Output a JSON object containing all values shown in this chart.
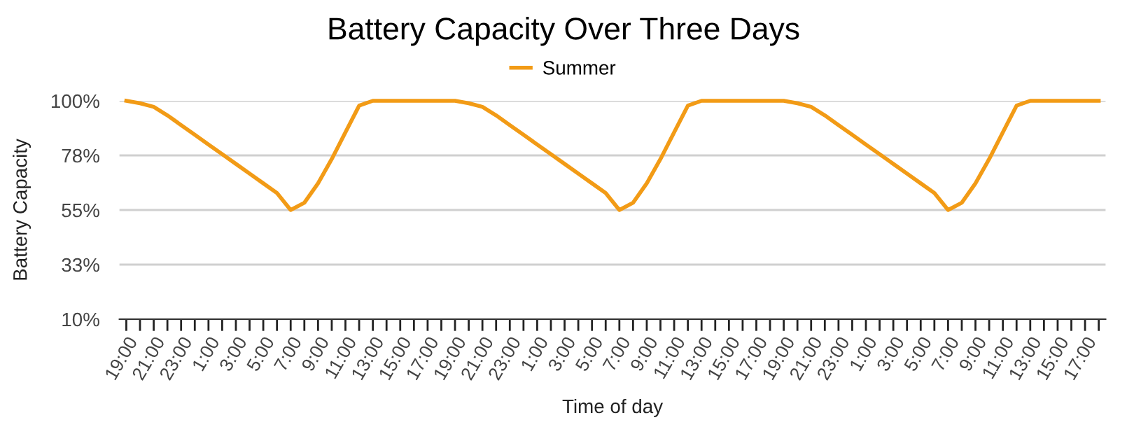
{
  "chart_data": {
    "type": "line",
    "title": "Battery Capacity Over Three Days",
    "xlabel": "Time of day",
    "ylabel": "Battery Capacity",
    "categories": [
      "19:00",
      null,
      "21:00",
      null,
      "23:00",
      null,
      "1:00",
      null,
      "3:00",
      null,
      "5:00",
      null,
      "7:00",
      null,
      "9:00",
      null,
      "11:00",
      null,
      "13:00",
      null,
      "15:00",
      null,
      "17:00",
      null,
      "19:00",
      null,
      "21:00",
      null,
      "23:00",
      null,
      "1:00",
      null,
      "3:00",
      null,
      "5:00",
      null,
      "7:00",
      null,
      "9:00",
      null,
      "11:00",
      null,
      "13:00",
      null,
      "15:00",
      null,
      "17:00",
      null,
      "19:00",
      null,
      "21:00",
      null,
      "23:00",
      null,
      "1:00",
      null,
      "3:00",
      null,
      "5:00",
      null,
      "7:00",
      null,
      "9:00",
      null,
      "11:00",
      null,
      "13:00",
      null,
      "15:00",
      null,
      "17:00",
      null
    ],
    "series": [
      {
        "name": "Summer",
        "color": "#f29b16",
        "values": [
          100,
          99,
          97.5,
          94,
          90,
          86,
          82,
          78,
          74,
          70,
          66,
          62,
          55,
          58,
          66,
          76,
          87,
          98,
          100,
          100,
          100,
          100,
          100,
          100,
          100,
          99,
          97.5,
          94,
          90,
          86,
          82,
          78,
          74,
          70,
          66,
          62,
          55,
          58,
          66,
          76,
          87,
          98,
          100,
          100,
          100,
          100,
          100,
          100,
          100,
          99,
          97.5,
          94,
          90,
          86,
          82,
          78,
          74,
          70,
          66,
          62,
          55,
          58,
          66,
          76,
          87,
          98,
          100,
          100,
          100,
          100,
          100,
          100
        ]
      }
    ],
    "ylim": [
      10,
      100
    ],
    "yticks": [
      {
        "value": 10,
        "label": "10%"
      },
      {
        "value": 32.5,
        "label": "33%"
      },
      {
        "value": 55,
        "label": "55%"
      },
      {
        "value": 77.5,
        "label": "78%"
      },
      {
        "value": 100,
        "label": "100%"
      }
    ],
    "grid": "y",
    "legend": "top",
    "marker": "none",
    "line_style": "solid"
  }
}
